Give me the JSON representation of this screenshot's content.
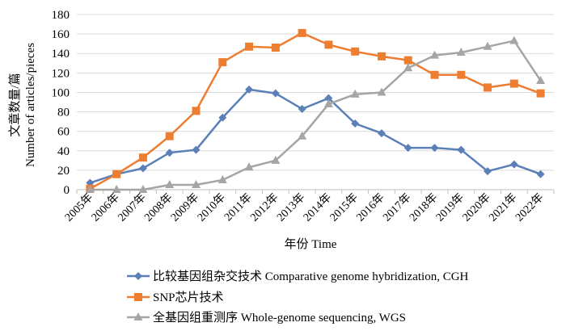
{
  "chart_data": {
    "type": "line",
    "xlabel": "年份 Time",
    "ylabel_lines": [
      "文章数量/篇",
      "Number of articles/pieces"
    ],
    "ylim": [
      0,
      180
    ],
    "yticks": [
      0,
      20,
      40,
      60,
      80,
      100,
      120,
      140,
      160,
      180
    ],
    "categories": [
      "2005年",
      "2006年",
      "2007年",
      "2008年",
      "2009年",
      "2010年",
      "2011年",
      "2012年",
      "2013年",
      "2014年",
      "2015年",
      "2016年",
      "2017年",
      "2018年",
      "2019年",
      "2020年",
      "2021年",
      "2022年"
    ],
    "grid": "horizontal",
    "legend_position": "bottom",
    "series": [
      {
        "name": "比较基因组杂交技术 Comparative genome hybridization, CGH",
        "color": "#5b7fb7",
        "marker": "diamond",
        "values": [
          7,
          16,
          22,
          38,
          41,
          74,
          103,
          99,
          83,
          94,
          68,
          58,
          43,
          43,
          41,
          19,
          26,
          16
        ]
      },
      {
        "name": "SNP芯片技术",
        "color": "#ed7d31",
        "marker": "square",
        "values": [
          1,
          16,
          33,
          55,
          81,
          131,
          147,
          146,
          161,
          149,
          142,
          137,
          133,
          118,
          118,
          105,
          109,
          99
        ]
      },
      {
        "name": "全基因组重测序 Whole-genome sequencing, WGS",
        "color": "#a5a5a5",
        "marker": "triangle",
        "values": [
          0,
          0,
          0,
          5,
          5,
          10,
          23,
          30,
          55,
          88,
          98,
          100,
          125,
          138,
          141,
          147,
          153,
          112
        ]
      }
    ]
  }
}
